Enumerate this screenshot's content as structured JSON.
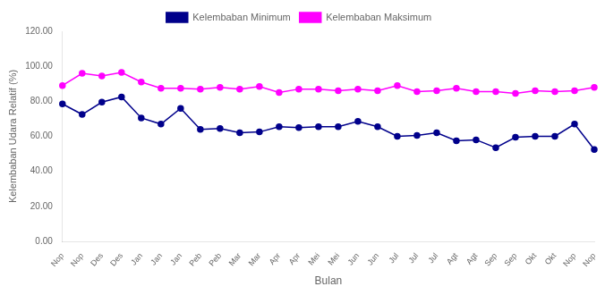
{
  "chart_data": {
    "type": "line",
    "xlabel": "Bulan",
    "ylabel": "Kelembaban Udara Relatif (%)",
    "categories": [
      "Nop",
      "Nop",
      "Des",
      "Des",
      "Jan",
      "Jan",
      "Jan",
      "Peb",
      "Peb",
      "Mar",
      "Mar",
      "Apr",
      "Apr",
      "Mei",
      "Mei",
      "Jun",
      "Jun",
      "Jul",
      "Jul",
      "Jul",
      "Agt",
      "Agt",
      "Sep",
      "Sep",
      "Okt",
      "Okt",
      "Nop",
      "Nop"
    ],
    "series": [
      {
        "name": "Kelembaban Minimum",
        "color": "#00008B",
        "marker": "circle",
        "values": [
          78.5,
          72.5,
          79.5,
          82.5,
          70.5,
          67.0,
          76.0,
          64.0,
          64.5,
          62.0,
          62.5,
          65.5,
          65.0,
          65.5,
          65.5,
          68.5,
          65.5,
          60.0,
          60.5,
          62.0,
          57.5,
          58.0,
          53.5,
          59.5,
          60.0,
          60.0,
          67.0,
          52.5
        ]
      },
      {
        "name": "Kelembaban Maksimum",
        "color": "#FF00FF",
        "marker": "circle",
        "values": [
          89.0,
          96.0,
          94.5,
          96.5,
          91.0,
          87.5,
          87.5,
          87.0,
          88.0,
          87.0,
          88.5,
          85.0,
          87.0,
          87.0,
          86.0,
          87.0,
          86.0,
          89.0,
          85.5,
          86.0,
          87.5,
          85.5,
          85.5,
          84.5,
          86.0,
          85.5,
          86.0,
          88.0
        ]
      }
    ],
    "ylim": [
      0,
      120
    ],
    "yticks": [
      {
        "value": 0,
        "label": "0.00"
      },
      {
        "value": 20,
        "label": "20.00"
      },
      {
        "value": 40,
        "label": "40.00"
      },
      {
        "value": 60,
        "label": "60.00"
      },
      {
        "value": 80,
        "label": "80.00"
      },
      {
        "value": 100,
        "label": "100.00"
      },
      {
        "value": 120,
        "label": "120.00"
      }
    ],
    "grid": false,
    "legend": "top"
  }
}
